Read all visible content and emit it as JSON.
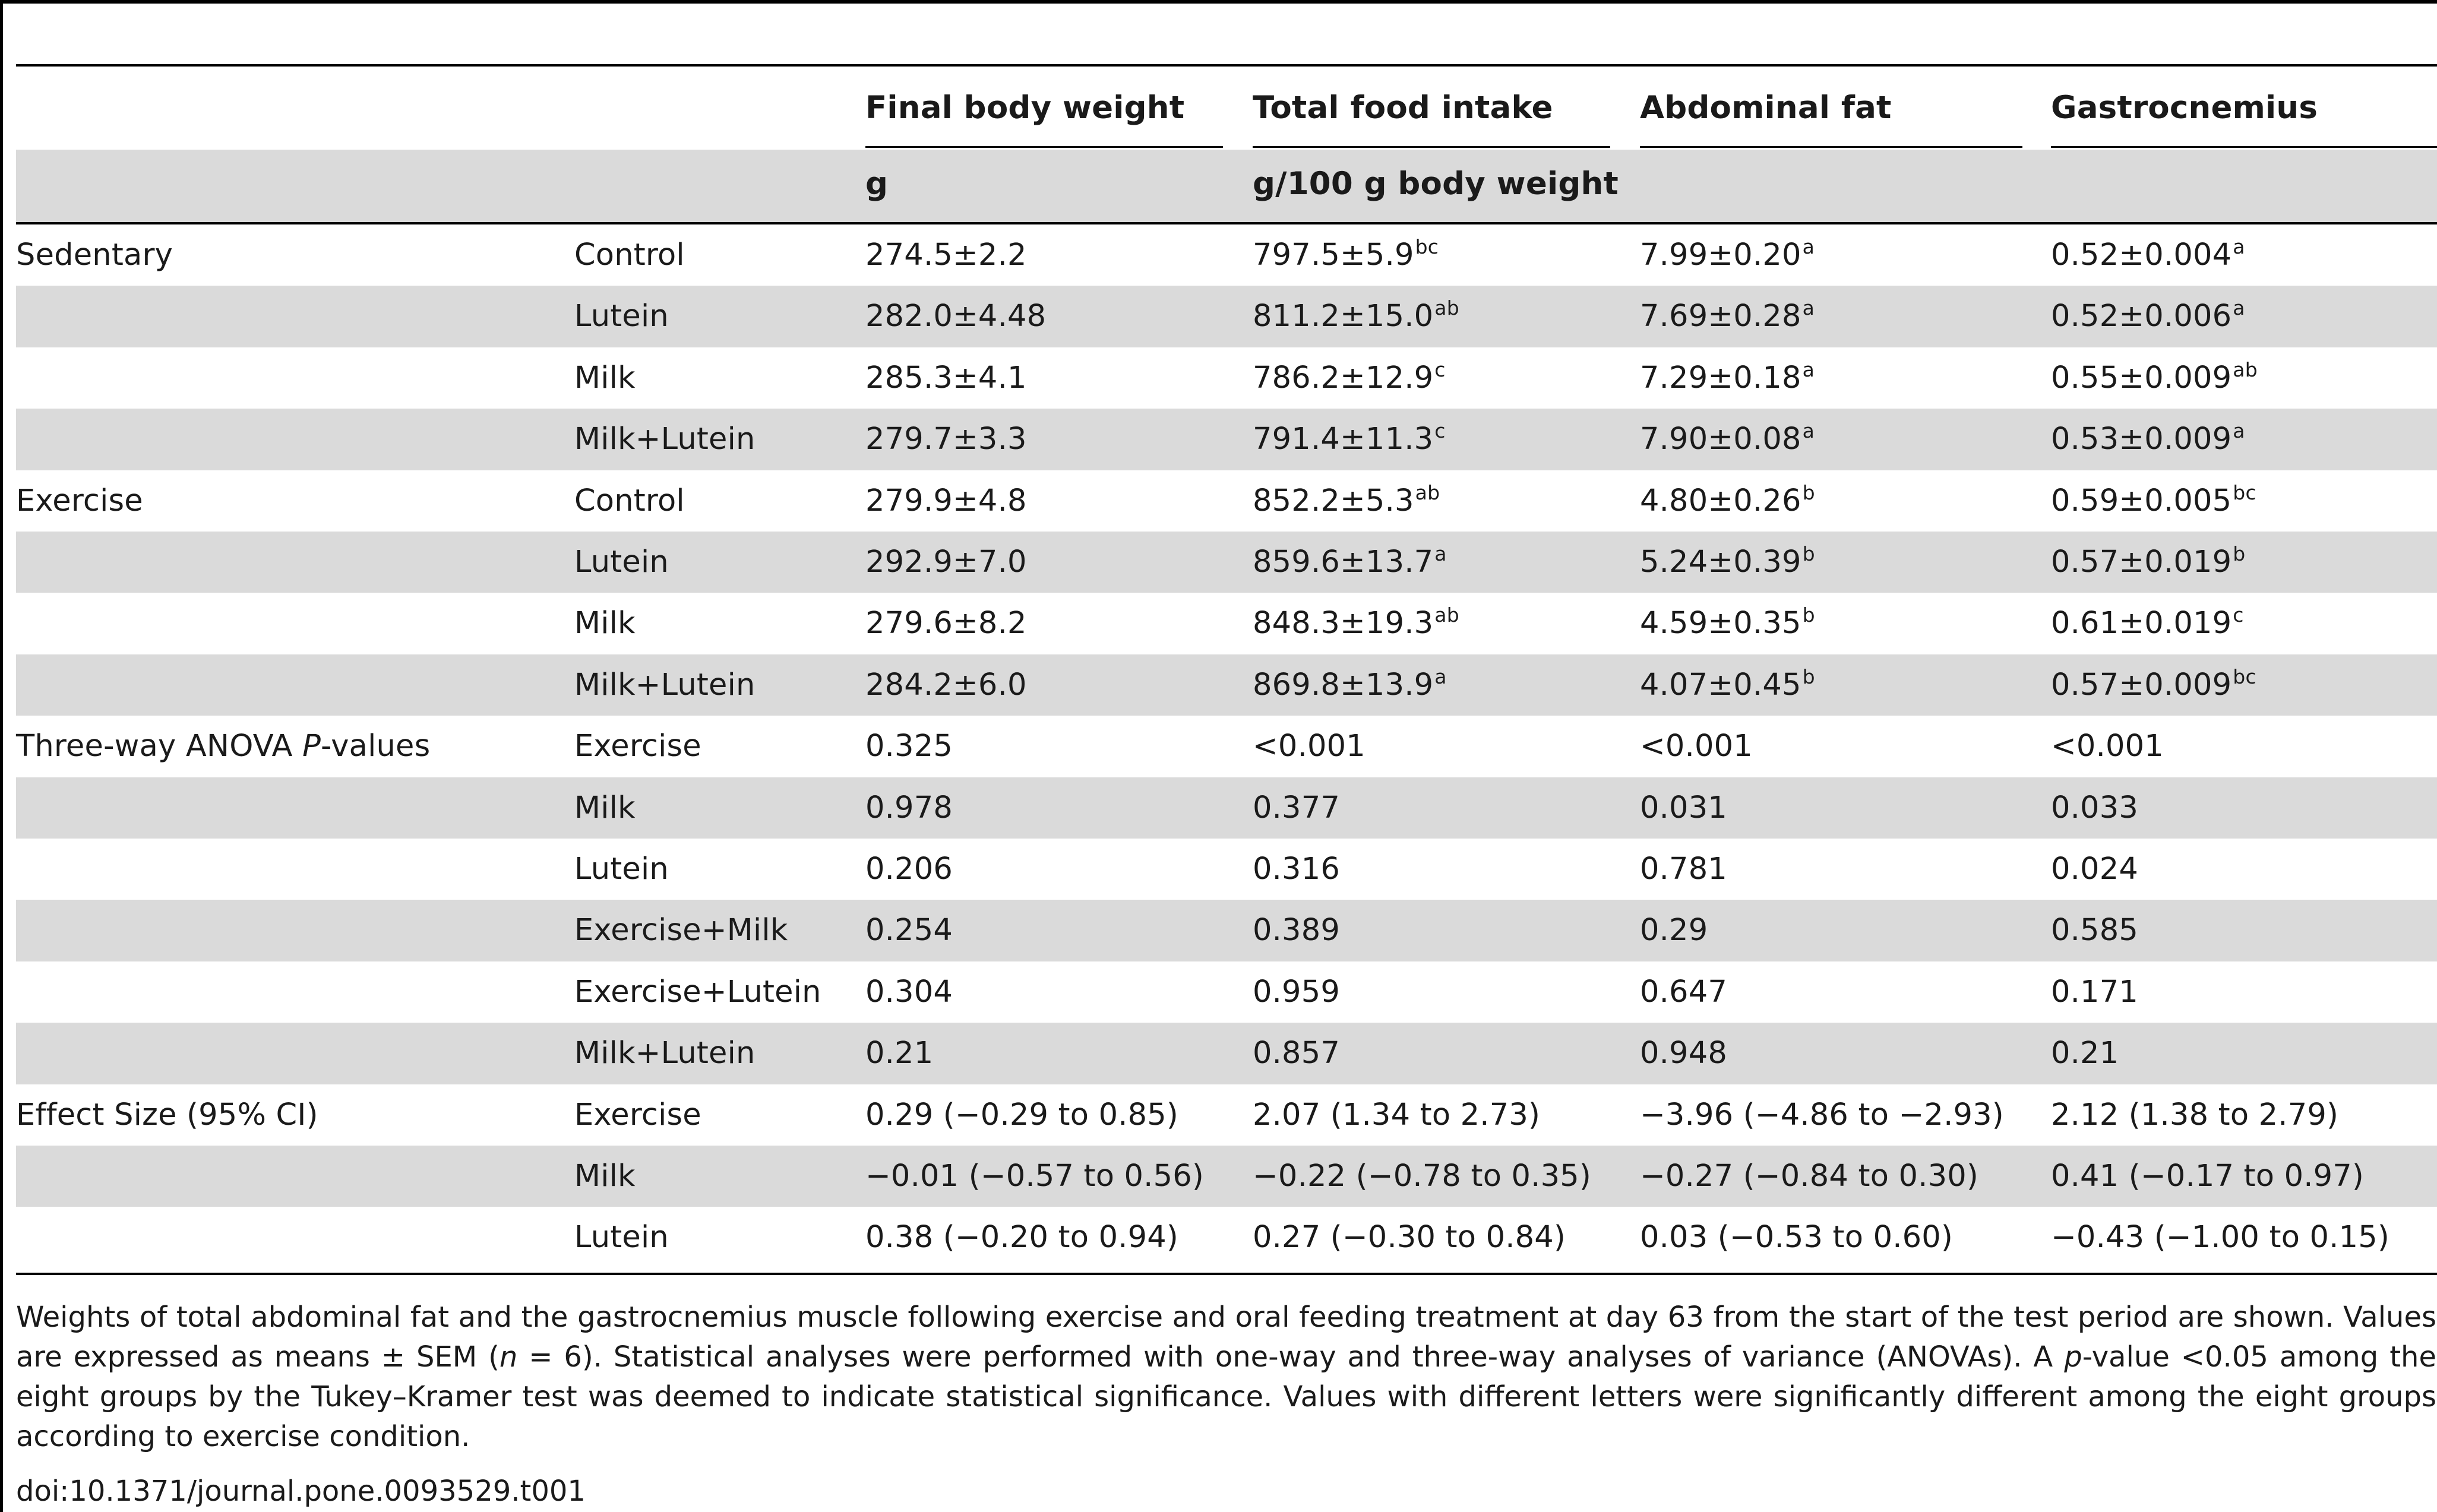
{
  "table": {
    "columns": [
      "Final body weight",
      "Total food intake",
      "Abdominal fat",
      "Gastrocnemius"
    ],
    "units": [
      "g",
      "g/100 g body weight",
      "",
      ""
    ],
    "rows": [
      {
        "group": "Sedentary",
        "label": "Control",
        "cells": [
          {
            "v": "274.5±2.2",
            "s": ""
          },
          {
            "v": "797.5±5.9",
            "s": "bc"
          },
          {
            "v": "7.99±0.20",
            "s": "a"
          },
          {
            "v": "0.52±0.004",
            "s": "a"
          }
        ]
      },
      {
        "group": "",
        "label": "Lutein",
        "cells": [
          {
            "v": "282.0±4.48",
            "s": ""
          },
          {
            "v": "811.2±15.0",
            "s": "ab"
          },
          {
            "v": "7.69±0.28",
            "s": "a"
          },
          {
            "v": "0.52±0.006",
            "s": "a"
          }
        ]
      },
      {
        "group": "",
        "label": "Milk",
        "cells": [
          {
            "v": "285.3±4.1",
            "s": ""
          },
          {
            "v": "786.2±12.9",
            "s": "c"
          },
          {
            "v": "7.29±0.18",
            "s": "a"
          },
          {
            "v": "0.55±0.009",
            "s": "ab"
          }
        ]
      },
      {
        "group": "",
        "label": "Milk+Lutein",
        "cells": [
          {
            "v": "279.7±3.3",
            "s": ""
          },
          {
            "v": "791.4±11.3",
            "s": "c"
          },
          {
            "v": "7.90±0.08",
            "s": "a"
          },
          {
            "v": "0.53±0.009",
            "s": "a"
          }
        ]
      },
      {
        "group": "Exercise",
        "label": "Control",
        "cells": [
          {
            "v": "279.9±4.8",
            "s": ""
          },
          {
            "v": "852.2±5.3",
            "s": "ab"
          },
          {
            "v": "4.80±0.26",
            "s": "b"
          },
          {
            "v": "0.59±0.005",
            "s": "bc"
          }
        ]
      },
      {
        "group": "",
        "label": "Lutein",
        "cells": [
          {
            "v": "292.9±7.0",
            "s": ""
          },
          {
            "v": "859.6±13.7",
            "s": "a"
          },
          {
            "v": "5.24±0.39",
            "s": "b"
          },
          {
            "v": "0.57±0.019",
            "s": "b"
          }
        ]
      },
      {
        "group": "",
        "label": "Milk",
        "cells": [
          {
            "v": "279.6±8.2",
            "s": ""
          },
          {
            "v": "848.3±19.3",
            "s": "ab"
          },
          {
            "v": "4.59±0.35",
            "s": "b"
          },
          {
            "v": "0.61±0.019",
            "s": "c"
          }
        ]
      },
      {
        "group": "",
        "label": "Milk+Lutein",
        "cells": [
          {
            "v": "284.2±6.0",
            "s": ""
          },
          {
            "v": "869.8±13.9",
            "s": "a"
          },
          {
            "v": "4.07±0.45",
            "s": "b"
          },
          {
            "v": "0.57±0.009",
            "s": "bc"
          }
        ]
      },
      {
        "group": "Three-way ANOVA ",
        "group_italic": "P",
        "group_suffix": "-values",
        "label": "Exercise",
        "cells": [
          {
            "v": "0.325",
            "s": ""
          },
          {
            "v": "<0.001",
            "s": ""
          },
          {
            "v": "<0.001",
            "s": ""
          },
          {
            "v": "<0.001",
            "s": ""
          }
        ]
      },
      {
        "group": "",
        "label": "Milk",
        "cells": [
          {
            "v": "0.978",
            "s": ""
          },
          {
            "v": "0.377",
            "s": ""
          },
          {
            "v": "0.031",
            "s": ""
          },
          {
            "v": "0.033",
            "s": ""
          }
        ]
      },
      {
        "group": "",
        "label": "Lutein",
        "cells": [
          {
            "v": "0.206",
            "s": ""
          },
          {
            "v": "0.316",
            "s": ""
          },
          {
            "v": "0.781",
            "s": ""
          },
          {
            "v": "0.024",
            "s": ""
          }
        ]
      },
      {
        "group": "",
        "label": "Exercise+Milk",
        "cells": [
          {
            "v": "0.254",
            "s": ""
          },
          {
            "v": "0.389",
            "s": ""
          },
          {
            "v": "0.29",
            "s": ""
          },
          {
            "v": "0.585",
            "s": ""
          }
        ]
      },
      {
        "group": "",
        "label": "Exercise+Lutein",
        "cells": [
          {
            "v": "0.304",
            "s": ""
          },
          {
            "v": "0.959",
            "s": ""
          },
          {
            "v": "0.647",
            "s": ""
          },
          {
            "v": "0.171",
            "s": ""
          }
        ]
      },
      {
        "group": "",
        "label": "Milk+Lutein",
        "cells": [
          {
            "v": "0.21",
            "s": ""
          },
          {
            "v": "0.857",
            "s": ""
          },
          {
            "v": "0.948",
            "s": ""
          },
          {
            "v": "0.21",
            "s": ""
          }
        ]
      },
      {
        "group": "Effect Size (95% CI)",
        "label": "Exercise",
        "cells": [
          {
            "v": "0.29 (−0.29 to 0.85)",
            "s": ""
          },
          {
            "v": "2.07 (1.34 to 2.73)",
            "s": ""
          },
          {
            "v": "−3.96 (−4.86 to −2.93)",
            "s": ""
          },
          {
            "v": "2.12 (1.38 to 2.79)",
            "s": ""
          }
        ]
      },
      {
        "group": "",
        "label": "Milk",
        "cells": [
          {
            "v": "−0.01 (−0.57 to 0.56)",
            "s": ""
          },
          {
            "v": "−0.22 (−0.78 to 0.35)",
            "s": ""
          },
          {
            "v": "−0.27 (−0.84 to 0.30)",
            "s": ""
          },
          {
            "v": "0.41 (−0.17 to 0.97)",
            "s": ""
          }
        ]
      },
      {
        "group": "",
        "label": "Lutein",
        "cells": [
          {
            "v": "0.38 (−0.20 to 0.94)",
            "s": ""
          },
          {
            "v": "0.27 (−0.30 to 0.84)",
            "s": ""
          },
          {
            "v": "0.03 (−0.53 to 0.60)",
            "s": ""
          },
          {
            "v": "−0.43 (−1.00 to 0.15)",
            "s": ""
          }
        ]
      }
    ]
  },
  "footnote": {
    "p1": "Weights of total abdominal fat and the gastrocnemius muscle following exercise and oral feeding treatment at day 63 from the start of the test period are shown. Values are expressed as means ± SEM (",
    "n_italic": "n",
    "p2": " = 6). Statistical analyses were performed with one-way and three-way analyses of variance (ANOVAs). A ",
    "p_italic": "p",
    "p3": "-value <0.05 among the eight groups by the Tukey–Kramer test was deemed to indicate statistical significance. Values with different letters were significantly different among the eight groups according to exercise condition."
  },
  "doi": "doi:10.1371/journal.pone.0093529.t001",
  "colors": {
    "band": "#dadada",
    "rule": "#000000",
    "text": "#1a1a1a"
  }
}
